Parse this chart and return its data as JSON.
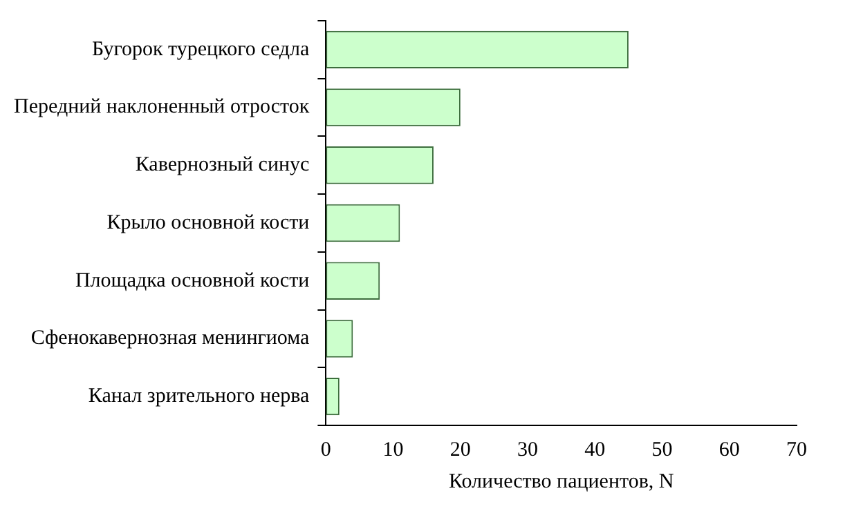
{
  "chart_data": {
    "type": "bar",
    "orientation": "horizontal",
    "xlabel": "Количество пациентов, N",
    "categories": [
      "Бугорок турецкого седла",
      "Передний наклоненный отросток",
      "Кавернозный синус",
      "Крыло основной кости",
      "Площадка основной кости",
      "Сфенокавернозная менингиома",
      "Канал зрительного нерва"
    ],
    "values": [
      45,
      20,
      16,
      11,
      8,
      4,
      2
    ],
    "color": "#ccffcc",
    "xlim": [
      0,
      70
    ],
    "xticks": [
      0,
      10,
      20,
      30,
      40,
      50,
      60,
      70
    ],
    "grid": false,
    "legend": false
  }
}
